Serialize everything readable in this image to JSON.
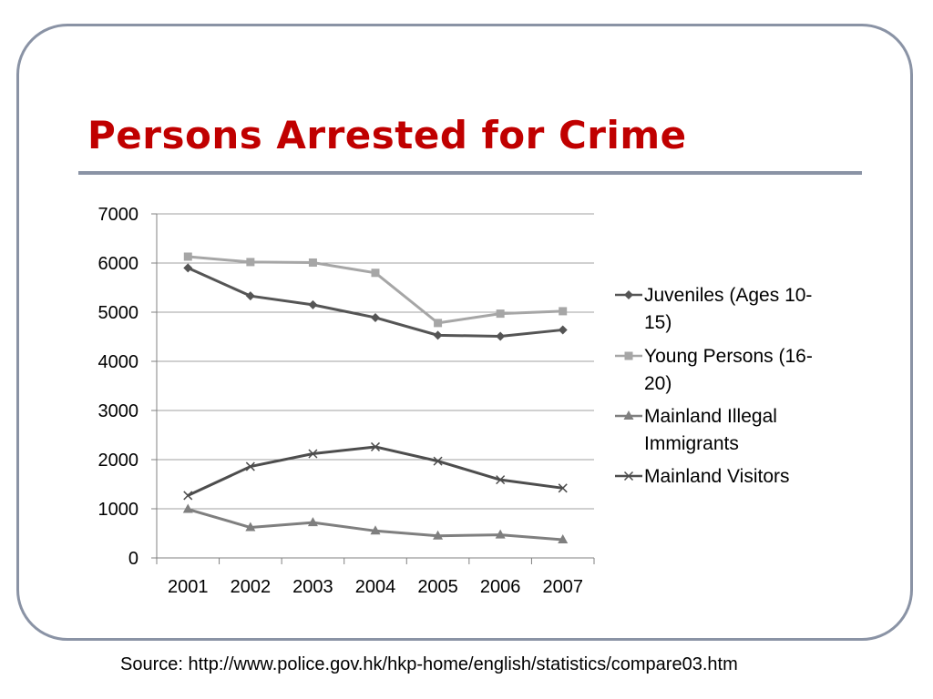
{
  "slide": {
    "title": "Persons Arrested for Crime",
    "source": "Source: http://www.police.gov.hk/hkp-home/english/statistics/compare03.htm"
  },
  "chart_data": {
    "type": "line",
    "title": "",
    "xlabel": "",
    "ylabel": "",
    "x": [
      "2001",
      "2002",
      "2003",
      "2004",
      "2005",
      "2006",
      "2007"
    ],
    "ylim": [
      0,
      7000
    ],
    "yticks": [
      0,
      1000,
      2000,
      3000,
      4000,
      5000,
      6000,
      7000
    ],
    "grid": true,
    "legend_position": "right",
    "series": [
      {
        "name": "Juveniles (Ages 10-15)",
        "legend_lines": [
          "Juveniles (Ages 10-",
          "15)"
        ],
        "marker": "diamond",
        "color": "#555555",
        "values": [
          5900,
          5330,
          5150,
          4890,
          4530,
          4510,
          4640
        ]
      },
      {
        "name": "Young Persons (16-20)",
        "legend_lines": [
          "Young Persons (16-",
          "20)"
        ],
        "marker": "square",
        "color": "#a6a6a6",
        "values": [
          6130,
          6020,
          6010,
          5800,
          4780,
          4970,
          5020
        ]
      },
      {
        "name": "Mainland Illegal Immigrants",
        "legend_lines": [
          "Mainland Illegal",
          "Immigrants"
        ],
        "marker": "triangle",
        "color": "#7f7f7f",
        "values": [
          990,
          620,
          720,
          550,
          450,
          470,
          370
        ]
      },
      {
        "name": "Mainland Visitors",
        "legend_lines": [
          "Mainland Visitors"
        ],
        "marker": "x",
        "color": "#4d4d4d",
        "values": [
          1270,
          1860,
          2120,
          2260,
          1970,
          1590,
          1420
        ]
      }
    ]
  }
}
